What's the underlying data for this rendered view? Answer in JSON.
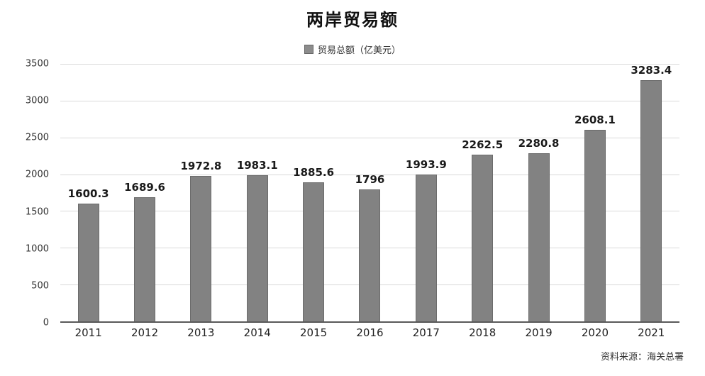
{
  "chart": {
    "title": "两岸贸易额",
    "legend_label": "贸易总额（亿美元）",
    "source": "资料来源：海关总署"
  },
  "chart_data": {
    "type": "bar",
    "title": "两岸贸易额",
    "legend": [
      "贸易总额（亿美元）"
    ],
    "legend_position": "top",
    "categories": [
      "2011",
      "2012",
      "2013",
      "2014",
      "2015",
      "2016",
      "2017",
      "2018",
      "2019",
      "2020",
      "2021"
    ],
    "values": [
      1600.3,
      1689.6,
      1972.8,
      1983.1,
      1885.6,
      1796,
      1993.9,
      2262.5,
      2280.8,
      2608.1,
      3283.4
    ],
    "xlabel": "",
    "ylabel": "",
    "ylim": [
      0,
      3500
    ],
    "yticks": [
      0,
      500,
      1000,
      1500,
      2000,
      2500,
      3000,
      3500
    ],
    "grid": true,
    "bar_color": "#828282",
    "annotation_source": "资料来源：海关总署"
  }
}
